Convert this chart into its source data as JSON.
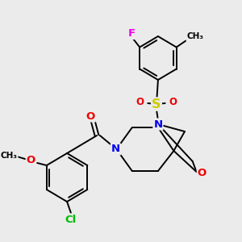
{
  "bg_color": "#ebebeb",
  "atom_colors": {
    "F": "#ee00ee",
    "Cl": "#00bb00",
    "O": "#ee0000",
    "N": "#0000ee",
    "S": "#cccc00",
    "C": "#000000"
  },
  "lw": 1.4,
  "fs": 8.5
}
